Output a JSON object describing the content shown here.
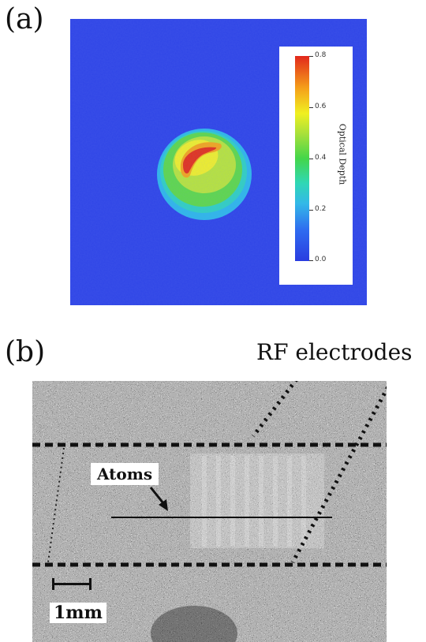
{
  "panel_a": {
    "label": "(a)",
    "colorbar_title": "Optical Depth",
    "colorbar_ticks": [
      "0.0",
      "0.2",
      "0.4",
      "0.6",
      "0.8"
    ],
    "background_color": "#2f45e6"
  },
  "panel_b": {
    "label": "(b)",
    "electrodes_label": "RF electrodes",
    "atoms_label": "Atoms",
    "scale_label": "1mm"
  }
}
